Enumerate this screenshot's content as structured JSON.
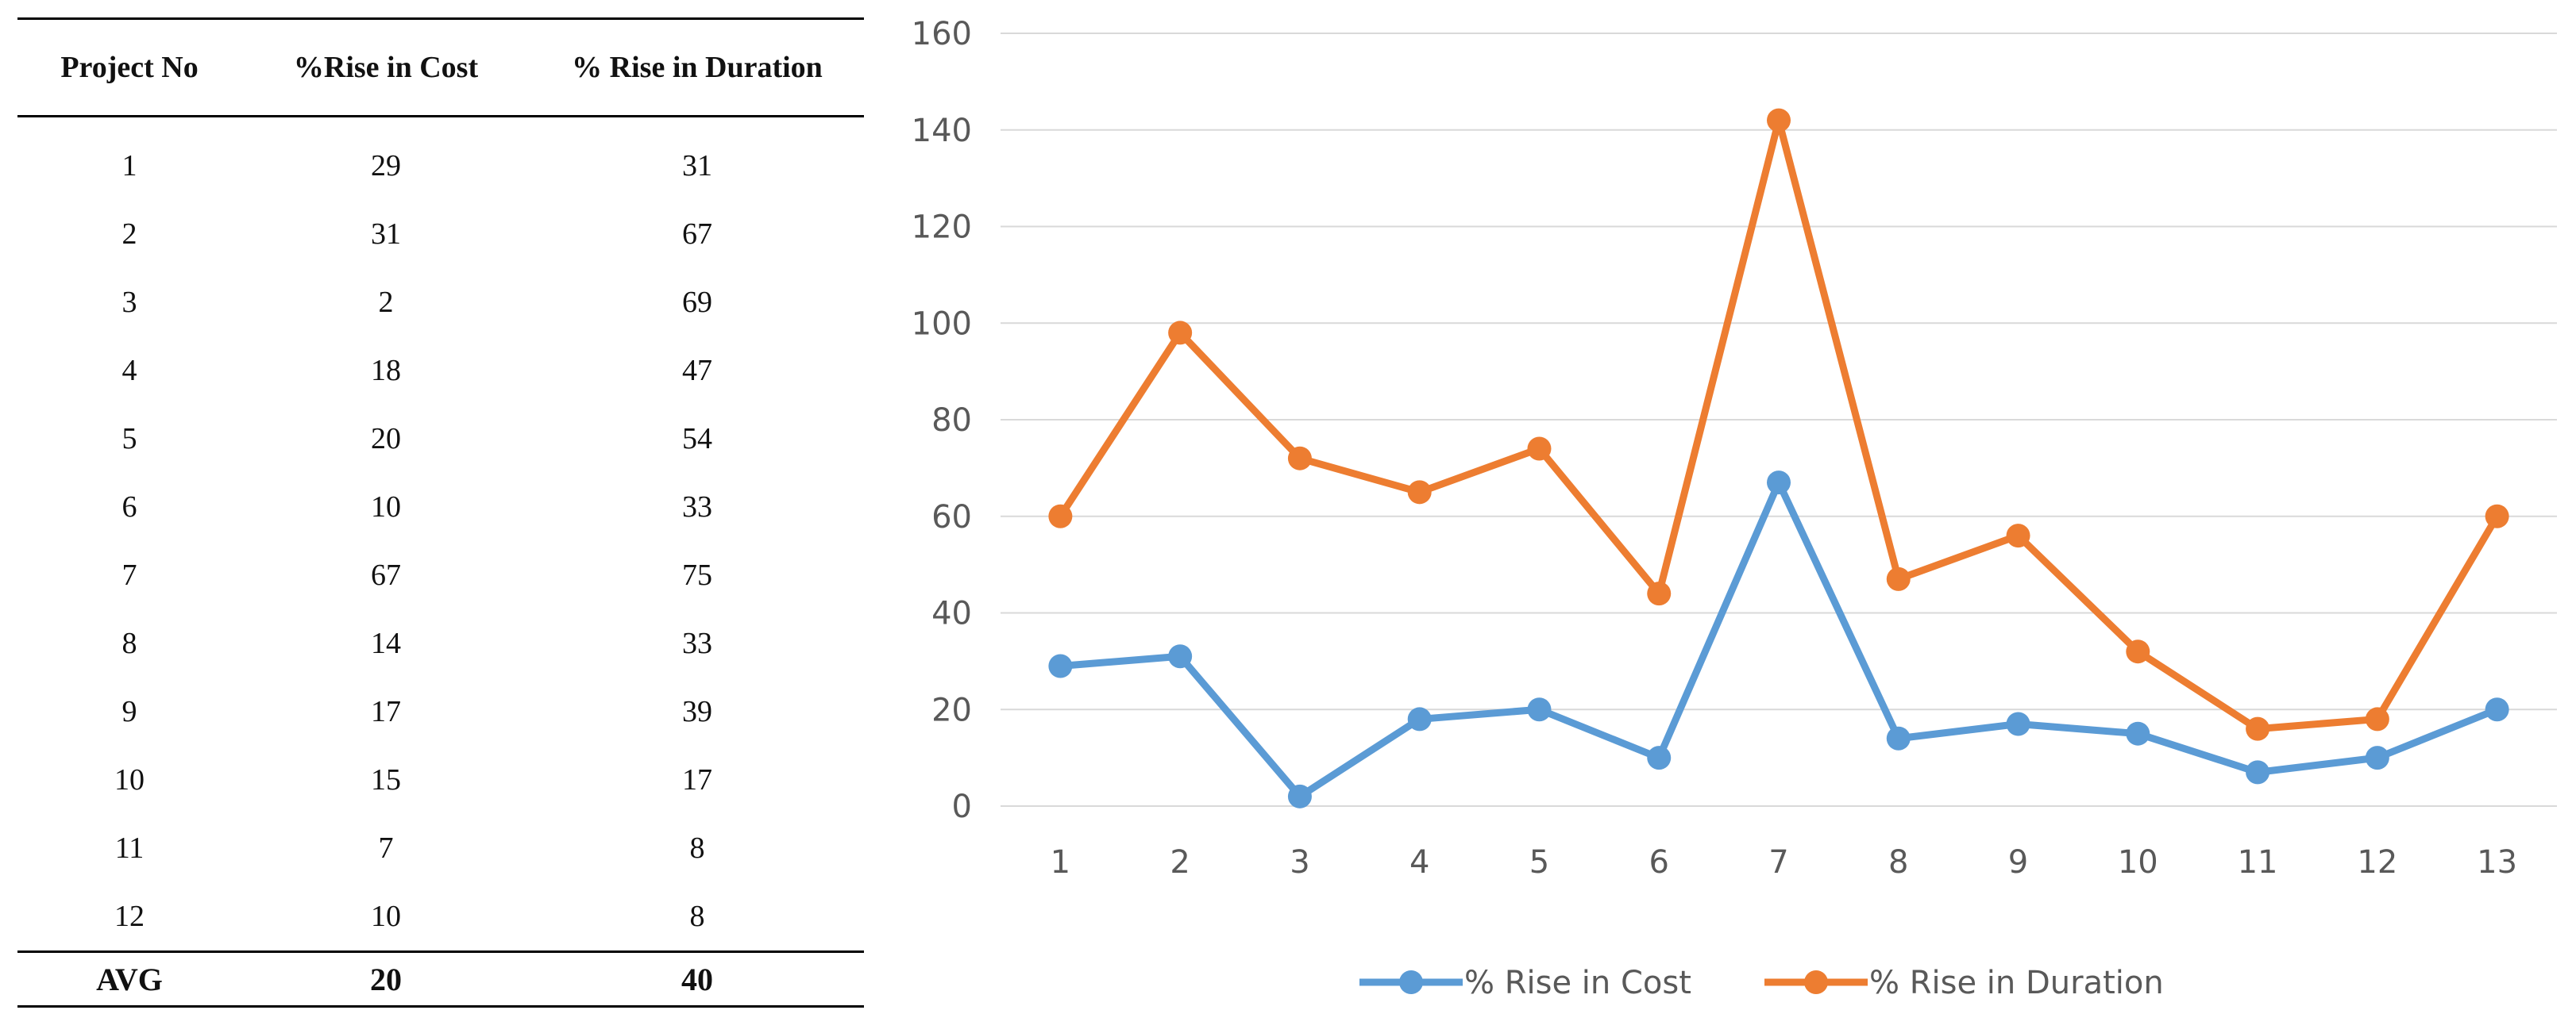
{
  "table": {
    "headers": [
      "Project No",
      "%Rise in Cost",
      "% Rise in Duration"
    ],
    "rows": [
      [
        "1",
        "29",
        "31"
      ],
      [
        "2",
        "31",
        "67"
      ],
      [
        "3",
        "2",
        "69"
      ],
      [
        "4",
        "18",
        "47"
      ],
      [
        "5",
        "20",
        "54"
      ],
      [
        "6",
        "10",
        "33"
      ],
      [
        "7",
        "67",
        "75"
      ],
      [
        "8",
        "14",
        "33"
      ],
      [
        "9",
        "17",
        "39"
      ],
      [
        "10",
        "15",
        "17"
      ],
      [
        "11",
        "7",
        "8"
      ],
      [
        "12",
        "10",
        "8"
      ]
    ],
    "footer": [
      "AVG",
      "20",
      "40"
    ]
  },
  "chart_data": {
    "type": "line",
    "x": [
      1,
      2,
      3,
      4,
      5,
      6,
      7,
      8,
      9,
      10,
      11,
      12,
      13
    ],
    "ylim": [
      0,
      160
    ],
    "yticks": [
      0,
      20,
      40,
      60,
      80,
      100,
      120,
      140,
      160
    ],
    "grid": true,
    "legend_position": "bottom",
    "series": [
      {
        "name": "% Rise in Cost",
        "color": "#5B9BD5",
        "values": [
          29,
          31,
          2,
          18,
          20,
          10,
          67,
          14,
          17,
          15,
          7,
          10,
          20
        ]
      },
      {
        "name": "% Rise in Duration",
        "color": "#ED7D31",
        "values": [
          60,
          98,
          72,
          65,
          74,
          44,
          142,
          47,
          56,
          32,
          16,
          18,
          60
        ]
      }
    ]
  }
}
